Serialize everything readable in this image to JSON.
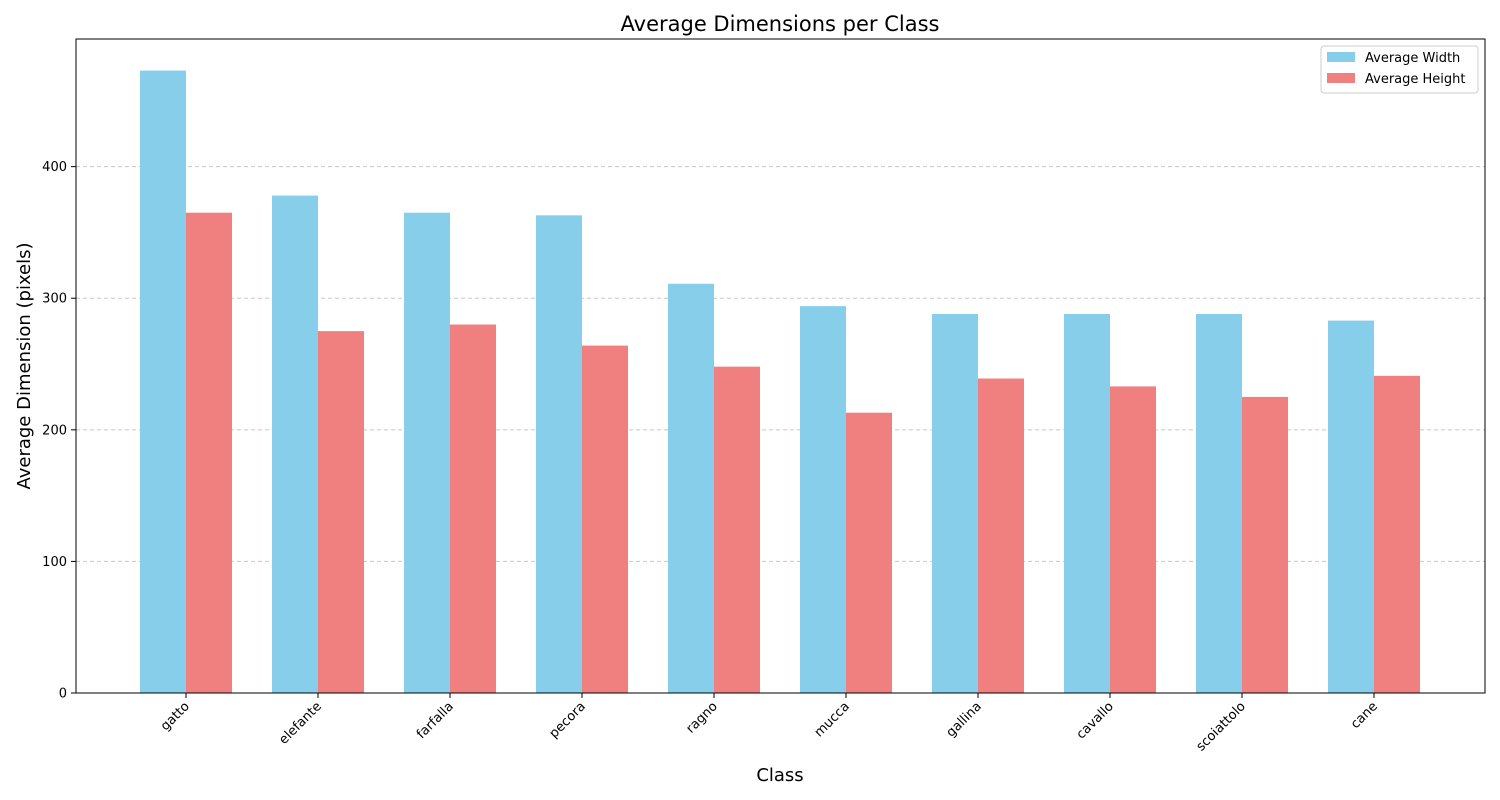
{
  "chart_data": {
    "type": "bar",
    "title": "Average Dimensions per Class",
    "xlabel": "Class",
    "ylabel": "Average Dimension (pixels)",
    "categories": [
      "gatto",
      "elefante",
      "farfalla",
      "pecora",
      "ragno",
      "mucca",
      "gallina",
      "cavallo",
      "scoiattolo",
      "cane"
    ],
    "series": [
      {
        "name": "Average Width",
        "color": "#87ceeb",
        "values": [
          473,
          378,
          365,
          363,
          311,
          294,
          288,
          288,
          288,
          283
        ]
      },
      {
        "name": "Average Height",
        "color": "#f08080",
        "values": [
          365,
          275,
          280,
          264,
          248,
          213,
          239,
          233,
          225,
          241
        ]
      }
    ],
    "ylim": [
      0,
      497
    ],
    "yticks": [
      0,
      100,
      200,
      300,
      400
    ],
    "grid": true,
    "legend_position": "top-right"
  }
}
